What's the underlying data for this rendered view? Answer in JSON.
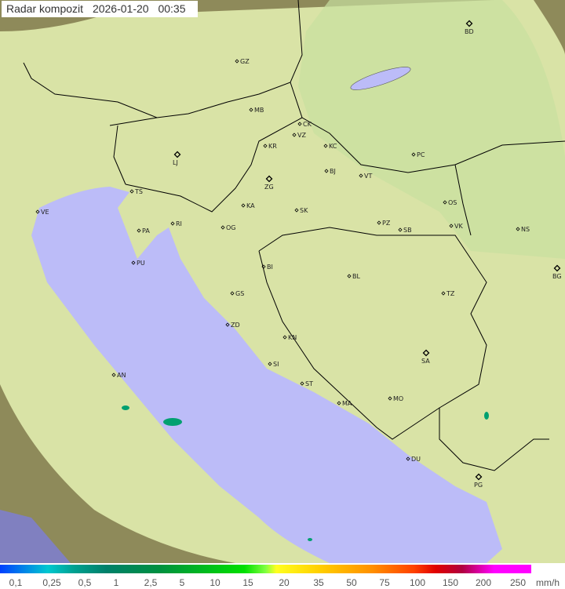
{
  "title": {
    "label": "Radar kompozit",
    "date": "2026-01-20",
    "time": "00:35"
  },
  "legend": {
    "ticks": [
      "0,1",
      "0,25",
      "0,5",
      "1",
      "2,5",
      "5",
      "10",
      "15",
      "20",
      "35",
      "50",
      "75",
      "100",
      "150",
      "200",
      "250"
    ],
    "unit": "mm/h"
  },
  "colors": {
    "sea": "#bcbcf8",
    "land": "#d8e4a8",
    "outside": "#8a8a60"
  },
  "cities": [
    "GZ",
    "BD",
    "MB",
    "CK",
    "VZ",
    "KR",
    "KC",
    "LJ",
    "PC",
    "ZG",
    "BJ",
    "VT",
    "TS",
    "VE",
    "RI",
    "KA",
    "SK",
    "OS",
    "PA",
    "OG",
    "PZ",
    "SB",
    "VK",
    "NS",
    "PU",
    "BI",
    "BL",
    "BG",
    "GS",
    "TZ",
    "ZD",
    "KN",
    "SA",
    "SI",
    "AN",
    "ST",
    "MA",
    "MO",
    "DU",
    "PG"
  ]
}
